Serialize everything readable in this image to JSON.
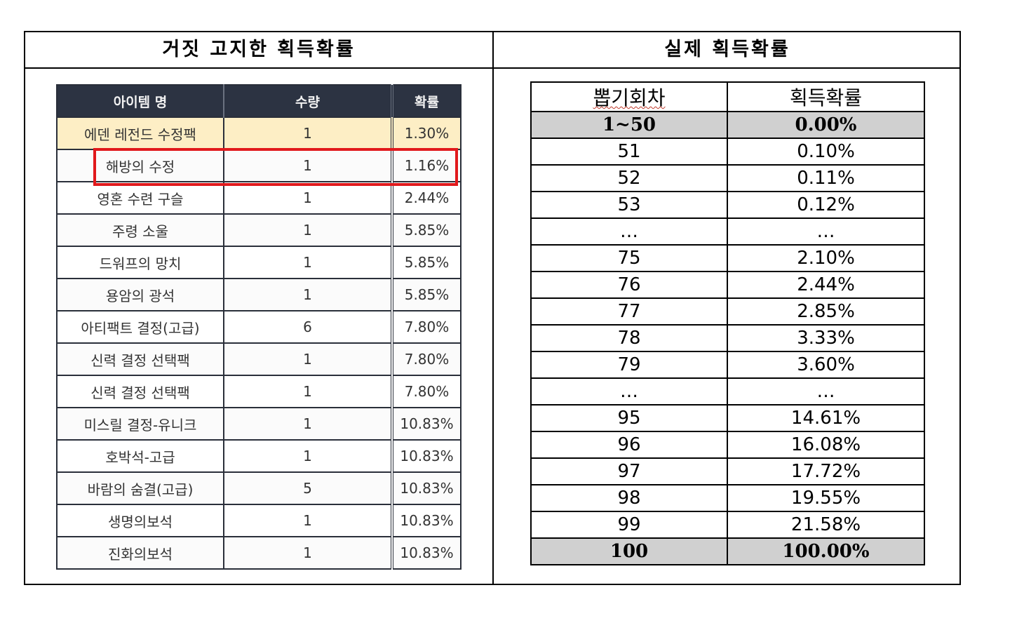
{
  "headers": {
    "left": "거짓 고지한 획득확률",
    "right": "실제 획득확률"
  },
  "left_table": {
    "columns": [
      "아이템 명",
      "수량",
      "확률"
    ],
    "rows": [
      {
        "name": "에덴 레전드 수정팩",
        "qty": "1",
        "prob": "1.30%"
      },
      {
        "name": "해방의 수정",
        "qty": "1",
        "prob": "1.16%"
      },
      {
        "name": "영혼 수련 구슬",
        "qty": "1",
        "prob": "2.44%"
      },
      {
        "name": "주령 소울",
        "qty": "1",
        "prob": "5.85%"
      },
      {
        "name": "드워프의 망치",
        "qty": "1",
        "prob": "5.85%"
      },
      {
        "name": "용암의 광석",
        "qty": "1",
        "prob": "5.85%"
      },
      {
        "name": "아티팩트 결정(고급)",
        "qty": "6",
        "prob": "7.80%"
      },
      {
        "name": "신력 결정 선택팩",
        "qty": "1",
        "prob": "7.80%"
      },
      {
        "name": "신력 결정 선택팩",
        "qty": "1",
        "prob": "7.80%"
      },
      {
        "name": "미스릴 결정-유니크",
        "qty": "1",
        "prob": "10.83%"
      },
      {
        "name": "호박석-고급",
        "qty": "1",
        "prob": "10.83%"
      },
      {
        "name": "바람의 숨결(고급)",
        "qty": "5",
        "prob": "10.83%"
      },
      {
        "name": "생명의보석",
        "qty": "1",
        "prob": "10.83%"
      },
      {
        "name": "진화의보석",
        "qty": "1",
        "prob": "10.83%"
      }
    ]
  },
  "right_table": {
    "columns": [
      "뽑기회차",
      "획득확률"
    ],
    "rows": [
      {
        "round": "1~50",
        "prob": "0.00%"
      },
      {
        "round": "51",
        "prob": "0.10%"
      },
      {
        "round": "52",
        "prob": "0.11%"
      },
      {
        "round": "53",
        "prob": "0.12%"
      },
      {
        "round": "…",
        "prob": "…"
      },
      {
        "round": "75",
        "prob": "2.10%"
      },
      {
        "round": "76",
        "prob": "2.44%"
      },
      {
        "round": "77",
        "prob": "2.85%"
      },
      {
        "round": "78",
        "prob": "3.33%"
      },
      {
        "round": "79",
        "prob": "3.60%"
      },
      {
        "round": "…",
        "prob": "…"
      },
      {
        "round": "95",
        "prob": "14.61%"
      },
      {
        "round": "96",
        "prob": "16.08%"
      },
      {
        "round": "97",
        "prob": "17.72%"
      },
      {
        "round": "98",
        "prob": "19.55%"
      },
      {
        "round": "99",
        "prob": "21.58%"
      },
      {
        "round": "100",
        "prob": "100.00%"
      }
    ]
  }
}
